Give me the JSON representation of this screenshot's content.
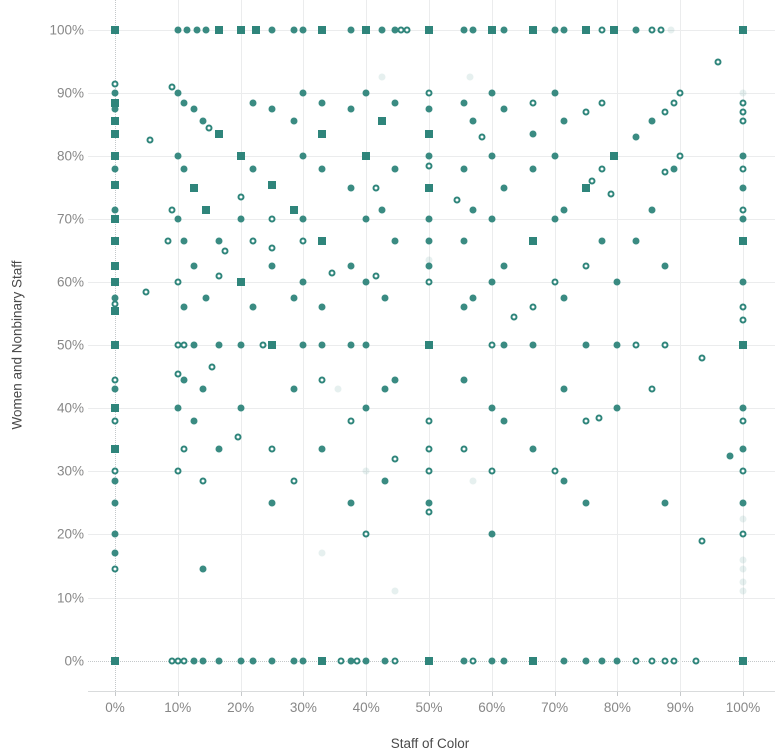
{
  "chart_data": {
    "type": "scatter",
    "title": "",
    "xlabel": "Staff of Color",
    "ylabel": "Women and Nonbinary Staff",
    "units": "percent",
    "x_ticks": [
      "0%",
      "10%",
      "20%",
      "30%",
      "40%",
      "50%",
      "60%",
      "70%",
      "80%",
      "90%",
      "100%"
    ],
    "y_ticks": [
      "0%",
      "10%",
      "20%",
      "30%",
      "40%",
      "50%",
      "60%",
      "70%",
      "80%",
      "90%",
      "100%"
    ],
    "x_tick_values": [
      0,
      10,
      20,
      30,
      40,
      50,
      60,
      70,
      80,
      90,
      100
    ],
    "y_tick_values": [
      0,
      10,
      20,
      30,
      40,
      50,
      60,
      70,
      80,
      90,
      100
    ],
    "xlim": [
      -4.5,
      105
    ],
    "ylim": [
      -5,
      104.5
    ],
    "grid": true,
    "legend": false,
    "zero_lines": "dotted",
    "marker_color": "#2f857b",
    "grid_color": "#ebeced",
    "zero_line_color": "#c4c8ca",
    "axis_label_color": "#878787",
    "axis_title_color": "#4a4a4a",
    "marker_legend": {
      "c": "filled circle",
      "s": "filled square",
      "o": "open circle",
      "f": "faint mark"
    },
    "points": [
      [
        0,
        100,
        "s"
      ],
      [
        10,
        100,
        "c"
      ],
      [
        11.5,
        100,
        "c"
      ],
      [
        13,
        100,
        "c"
      ],
      [
        14.5,
        100,
        "c"
      ],
      [
        16.5,
        100,
        "s"
      ],
      [
        20,
        100,
        "s"
      ],
      [
        22.5,
        100,
        "s"
      ],
      [
        25,
        100,
        "c"
      ],
      [
        28.5,
        100,
        "c"
      ],
      [
        30,
        100,
        "c"
      ],
      [
        33,
        100,
        "s"
      ],
      [
        37.5,
        100,
        "c"
      ],
      [
        40,
        100,
        "s"
      ],
      [
        42.5,
        100,
        "c"
      ],
      [
        44.5,
        100,
        "c"
      ],
      [
        45.5,
        100,
        "o"
      ],
      [
        46.5,
        100,
        "o"
      ],
      [
        50,
        100,
        "s"
      ],
      [
        55.5,
        100,
        "c"
      ],
      [
        57,
        100,
        "c"
      ],
      [
        60,
        100,
        "s"
      ],
      [
        62,
        100,
        "c"
      ],
      [
        66.5,
        100,
        "s"
      ],
      [
        70,
        100,
        "c"
      ],
      [
        71.5,
        100,
        "c"
      ],
      [
        75,
        100,
        "s"
      ],
      [
        77.5,
        100,
        "o"
      ],
      [
        79.5,
        100,
        "s"
      ],
      [
        83,
        100,
        "c"
      ],
      [
        85.5,
        100,
        "o"
      ],
      [
        87,
        100,
        "o"
      ],
      [
        100,
        100,
        "s"
      ],
      [
        0,
        0,
        "s"
      ],
      [
        9,
        0,
        "o"
      ],
      [
        10,
        0,
        "o"
      ],
      [
        11,
        0,
        "o"
      ],
      [
        12.5,
        0,
        "c"
      ],
      [
        14,
        0,
        "c"
      ],
      [
        16.5,
        0,
        "c"
      ],
      [
        20,
        0,
        "c"
      ],
      [
        22,
        0,
        "c"
      ],
      [
        25,
        0,
        "c"
      ],
      [
        28.5,
        0,
        "c"
      ],
      [
        30,
        0,
        "c"
      ],
      [
        33,
        0,
        "s"
      ],
      [
        36,
        0,
        "o"
      ],
      [
        37.5,
        0,
        "c"
      ],
      [
        38.5,
        0,
        "o"
      ],
      [
        40,
        0,
        "c"
      ],
      [
        43,
        0,
        "c"
      ],
      [
        44.5,
        0,
        "o"
      ],
      [
        50,
        0,
        "s"
      ],
      [
        55.5,
        0,
        "c"
      ],
      [
        57,
        0,
        "o"
      ],
      [
        60,
        0,
        "c"
      ],
      [
        62,
        0,
        "c"
      ],
      [
        66.5,
        0,
        "s"
      ],
      [
        71.5,
        0,
        "c"
      ],
      [
        75,
        0,
        "c"
      ],
      [
        77.5,
        0,
        "c"
      ],
      [
        80,
        0,
        "c"
      ],
      [
        83,
        0,
        "o"
      ],
      [
        85.5,
        0,
        "o"
      ],
      [
        87.5,
        0,
        "o"
      ],
      [
        89,
        0,
        "o"
      ],
      [
        92.5,
        0,
        "o"
      ],
      [
        100,
        0,
        "s"
      ],
      [
        0,
        91.5,
        "o"
      ],
      [
        0,
        90,
        "c"
      ],
      [
        0,
        88.5,
        "s"
      ],
      [
        0,
        87.5,
        "c"
      ],
      [
        0,
        85.5,
        "s"
      ],
      [
        0,
        83.5,
        "s"
      ],
      [
        0,
        80,
        "s"
      ],
      [
        0,
        78,
        "c"
      ],
      [
        0,
        75.5,
        "s"
      ],
      [
        0,
        71.5,
        "c"
      ],
      [
        0,
        70,
        "s"
      ],
      [
        0,
        66.5,
        "s"
      ],
      [
        0,
        62.5,
        "s"
      ],
      [
        0,
        60,
        "s"
      ],
      [
        0,
        57.5,
        "c"
      ],
      [
        0,
        56.5,
        "o"
      ],
      [
        0,
        55.5,
        "s"
      ],
      [
        0,
        50,
        "s"
      ],
      [
        0,
        44.5,
        "o"
      ],
      [
        0,
        43,
        "c"
      ],
      [
        0,
        40,
        "s"
      ],
      [
        0,
        38,
        "o"
      ],
      [
        0,
        33.5,
        "s"
      ],
      [
        0,
        30,
        "o"
      ],
      [
        0,
        28.5,
        "c"
      ],
      [
        0,
        25,
        "c"
      ],
      [
        0,
        20,
        "c"
      ],
      [
        0,
        17,
        "c"
      ],
      [
        0,
        14.5,
        "o"
      ],
      [
        9,
        91,
        "o"
      ],
      [
        10,
        90,
        "c"
      ],
      [
        30,
        90,
        "c"
      ],
      [
        11,
        88.5,
        "c"
      ],
      [
        22,
        88.5,
        "c"
      ],
      [
        12.5,
        87.5,
        "c"
      ],
      [
        25,
        87.5,
        "c"
      ],
      [
        14,
        85.5,
        "c"
      ],
      [
        28.5,
        85.5,
        "c"
      ],
      [
        15,
        84.5,
        "o"
      ],
      [
        16.5,
        83.5,
        "s"
      ],
      [
        5.5,
        82.5,
        "o"
      ],
      [
        10,
        80,
        "c"
      ],
      [
        20,
        80,
        "s"
      ],
      [
        30,
        80,
        "c"
      ],
      [
        11,
        78,
        "c"
      ],
      [
        22,
        78,
        "c"
      ],
      [
        12.5,
        75,
        "s"
      ],
      [
        25,
        75.5,
        "s"
      ],
      [
        20,
        73.5,
        "o"
      ],
      [
        9,
        71.5,
        "o"
      ],
      [
        14.5,
        71.5,
        "s"
      ],
      [
        28.5,
        71.5,
        "s"
      ],
      [
        10,
        70,
        "c"
      ],
      [
        20,
        70,
        "c"
      ],
      [
        25,
        70,
        "o"
      ],
      [
        30,
        70,
        "c"
      ],
      [
        40,
        90,
        "c"
      ],
      [
        50,
        90,
        "o"
      ],
      [
        60,
        90,
        "c"
      ],
      [
        33,
        88.5,
        "c"
      ],
      [
        44.5,
        88.5,
        "c"
      ],
      [
        55.5,
        88.5,
        "c"
      ],
      [
        66.5,
        88.5,
        "o"
      ],
      [
        37.5,
        87.5,
        "c"
      ],
      [
        50,
        87.5,
        "c"
      ],
      [
        62,
        87.5,
        "c"
      ],
      [
        42.5,
        85.5,
        "s"
      ],
      [
        57,
        85.5,
        "c"
      ],
      [
        33,
        83.5,
        "s"
      ],
      [
        50,
        83.5,
        "s"
      ],
      [
        58.5,
        83,
        "o"
      ],
      [
        66.5,
        83.5,
        "c"
      ],
      [
        40,
        80,
        "s"
      ],
      [
        50,
        80,
        "c"
      ],
      [
        60,
        80,
        "c"
      ],
      [
        50,
        78.5,
        "o"
      ],
      [
        33,
        78,
        "c"
      ],
      [
        44.5,
        78,
        "c"
      ],
      [
        55.5,
        78,
        "c"
      ],
      [
        66.5,
        78,
        "c"
      ],
      [
        37.5,
        75,
        "c"
      ],
      [
        41.5,
        75,
        "o"
      ],
      [
        50,
        75,
        "s"
      ],
      [
        62,
        75,
        "c"
      ],
      [
        54.5,
        73,
        "o"
      ],
      [
        42.5,
        71.5,
        "c"
      ],
      [
        57,
        71.5,
        "c"
      ],
      [
        40,
        70,
        "c"
      ],
      [
        50,
        70,
        "c"
      ],
      [
        60,
        70,
        "c"
      ],
      [
        96,
        95,
        "o"
      ],
      [
        70,
        90,
        "c"
      ],
      [
        90,
        90,
        "o"
      ],
      [
        77.5,
        88.5,
        "o"
      ],
      [
        89,
        88.5,
        "o"
      ],
      [
        100,
        88.5,
        "o"
      ],
      [
        75,
        87,
        "o"
      ],
      [
        87.5,
        87,
        "o"
      ],
      [
        100,
        87,
        "o"
      ],
      [
        71.5,
        85.5,
        "c"
      ],
      [
        85.5,
        85.5,
        "c"
      ],
      [
        100,
        85.5,
        "o"
      ],
      [
        83,
        83,
        "c"
      ],
      [
        70,
        80,
        "c"
      ],
      [
        79.5,
        80,
        "s"
      ],
      [
        90,
        80,
        "o"
      ],
      [
        100,
        80,
        "c"
      ],
      [
        77.5,
        78,
        "o"
      ],
      [
        89,
        78,
        "c"
      ],
      [
        100,
        78,
        "o"
      ],
      [
        87.5,
        77.5,
        "o"
      ],
      [
        76,
        76,
        "o"
      ],
      [
        75,
        75,
        "s"
      ],
      [
        100,
        75,
        "c"
      ],
      [
        79,
        74,
        "o"
      ],
      [
        71.5,
        71.5,
        "c"
      ],
      [
        85.5,
        71.5,
        "c"
      ],
      [
        100,
        71.5,
        "o"
      ],
      [
        70,
        70,
        "c"
      ],
      [
        100,
        70,
        "c"
      ],
      [
        8.5,
        66.5,
        "o"
      ],
      [
        11,
        66.5,
        "c"
      ],
      [
        16.5,
        66.5,
        "c"
      ],
      [
        22,
        66.5,
        "o"
      ],
      [
        30,
        66.5,
        "o"
      ],
      [
        25,
        65.5,
        "o"
      ],
      [
        17.5,
        65,
        "o"
      ],
      [
        12.5,
        62.5,
        "c"
      ],
      [
        25,
        62.5,
        "c"
      ],
      [
        16.5,
        61,
        "o"
      ],
      [
        10,
        60,
        "o"
      ],
      [
        20,
        60,
        "s"
      ],
      [
        30,
        60,
        "c"
      ],
      [
        5,
        58.5,
        "o"
      ],
      [
        14.5,
        57.5,
        "c"
      ],
      [
        28.5,
        57.5,
        "c"
      ],
      [
        11,
        56,
        "c"
      ],
      [
        22,
        56,
        "c"
      ],
      [
        10,
        50,
        "o"
      ],
      [
        11,
        50,
        "o"
      ],
      [
        12.5,
        50,
        "c"
      ],
      [
        16.5,
        50,
        "c"
      ],
      [
        20,
        50,
        "c"
      ],
      [
        23.5,
        50,
        "o"
      ],
      [
        25,
        50,
        "s"
      ],
      [
        30,
        50,
        "c"
      ],
      [
        15.5,
        46.5,
        "o"
      ],
      [
        10,
        45.5,
        "o"
      ],
      [
        11,
        44.5,
        "c"
      ],
      [
        14,
        43,
        "c"
      ],
      [
        28.5,
        43,
        "c"
      ],
      [
        10,
        40,
        "c"
      ],
      [
        20,
        40,
        "c"
      ],
      [
        12.5,
        38,
        "c"
      ],
      [
        19.5,
        35.5,
        "o"
      ],
      [
        11,
        33.5,
        "o"
      ],
      [
        16.5,
        33.5,
        "c"
      ],
      [
        25,
        33.5,
        "o"
      ],
      [
        33,
        66.5,
        "s"
      ],
      [
        44.5,
        66.5,
        "c"
      ],
      [
        50,
        66.5,
        "c"
      ],
      [
        55.5,
        66.5,
        "c"
      ],
      [
        66.5,
        66.5,
        "s"
      ],
      [
        37.5,
        62.5,
        "c"
      ],
      [
        50,
        62.5,
        "c"
      ],
      [
        62,
        62.5,
        "c"
      ],
      [
        34.5,
        61.5,
        "o"
      ],
      [
        41.5,
        61,
        "o"
      ],
      [
        40,
        60,
        "c"
      ],
      [
        50,
        60,
        "o"
      ],
      [
        60,
        60,
        "c"
      ],
      [
        43,
        57.5,
        "c"
      ],
      [
        57,
        57.5,
        "c"
      ],
      [
        33,
        56,
        "c"
      ],
      [
        55.5,
        56,
        "c"
      ],
      [
        66.5,
        56,
        "o"
      ],
      [
        63.5,
        54.5,
        "o"
      ],
      [
        33,
        50,
        "c"
      ],
      [
        37.5,
        50,
        "c"
      ],
      [
        40,
        50,
        "c"
      ],
      [
        50,
        50,
        "s"
      ],
      [
        60,
        50,
        "o"
      ],
      [
        62,
        50,
        "c"
      ],
      [
        66.5,
        50,
        "c"
      ],
      [
        33,
        44.5,
        "o"
      ],
      [
        44.5,
        44.5,
        "c"
      ],
      [
        55.5,
        44.5,
        "c"
      ],
      [
        43,
        43,
        "c"
      ],
      [
        40,
        40,
        "c"
      ],
      [
        60,
        40,
        "c"
      ],
      [
        37.5,
        38,
        "o"
      ],
      [
        50,
        38,
        "o"
      ],
      [
        62,
        38,
        "c"
      ],
      [
        33,
        33.5,
        "c"
      ],
      [
        50,
        33.5,
        "o"
      ],
      [
        55.5,
        33.5,
        "o"
      ],
      [
        66.5,
        33.5,
        "c"
      ],
      [
        77.5,
        66.5,
        "c"
      ],
      [
        83,
        66.5,
        "c"
      ],
      [
        100,
        66.5,
        "s"
      ],
      [
        75,
        62.5,
        "o"
      ],
      [
        87.5,
        62.5,
        "c"
      ],
      [
        70,
        60,
        "o"
      ],
      [
        80,
        60,
        "c"
      ],
      [
        100,
        60,
        "c"
      ],
      [
        71.5,
        57.5,
        "c"
      ],
      [
        100,
        56,
        "o"
      ],
      [
        100,
        54,
        "o"
      ],
      [
        75,
        50,
        "c"
      ],
      [
        80,
        50,
        "c"
      ],
      [
        83,
        50,
        "o"
      ],
      [
        87.5,
        50,
        "o"
      ],
      [
        100,
        50,
        "s"
      ],
      [
        93.5,
        48,
        "o"
      ],
      [
        71.5,
        43,
        "c"
      ],
      [
        85.5,
        43,
        "o"
      ],
      [
        80,
        40,
        "c"
      ],
      [
        100,
        40,
        "c"
      ],
      [
        77,
        38.5,
        "o"
      ],
      [
        75,
        38,
        "o"
      ],
      [
        100,
        38,
        "o"
      ],
      [
        100,
        33.5,
        "c"
      ],
      [
        98,
        32.5,
        "c"
      ],
      [
        10,
        30,
        "o"
      ],
      [
        14,
        28.5,
        "o"
      ],
      [
        28.5,
        28.5,
        "o"
      ],
      [
        25,
        25,
        "c"
      ],
      [
        14,
        14.5,
        "c"
      ],
      [
        44.5,
        32,
        "o"
      ],
      [
        50,
        30,
        "o"
      ],
      [
        60,
        30,
        "o"
      ],
      [
        43,
        28.5,
        "c"
      ],
      [
        37.5,
        25,
        "c"
      ],
      [
        50,
        25,
        "c"
      ],
      [
        50,
        23.5,
        "o"
      ],
      [
        40,
        20,
        "o"
      ],
      [
        60,
        20,
        "c"
      ],
      [
        70,
        30,
        "o"
      ],
      [
        100,
        30,
        "o"
      ],
      [
        71.5,
        28.5,
        "c"
      ],
      [
        75,
        25,
        "c"
      ],
      [
        87.5,
        25,
        "c"
      ],
      [
        100,
        25,
        "c"
      ],
      [
        100,
        20,
        "o"
      ],
      [
        93.5,
        19,
        "o"
      ]
    ],
    "faint_points": [
      [
        42.5,
        92.5
      ],
      [
        56.5,
        92.5
      ],
      [
        88.5,
        100
      ],
      [
        100,
        90
      ],
      [
        50,
        63.5
      ],
      [
        35.5,
        43
      ],
      [
        57,
        28.5
      ],
      [
        40,
        30
      ],
      [
        100,
        22.5
      ],
      [
        100,
        16
      ],
      [
        100,
        14.5
      ],
      [
        100,
        12.5
      ],
      [
        100,
        11
      ],
      [
        44.5,
        11
      ],
      [
        33,
        17
      ]
    ]
  }
}
